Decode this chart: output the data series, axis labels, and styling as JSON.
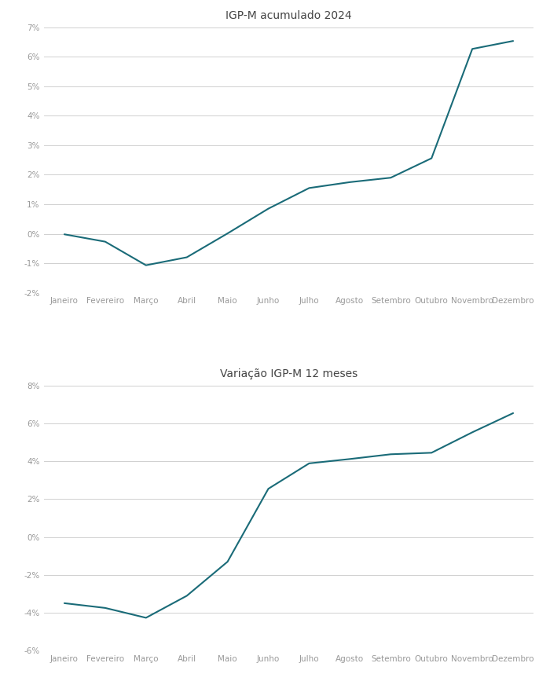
{
  "chart1": {
    "title": "IGP-M acumulado 2024",
    "months": [
      "Janeiro",
      "Fevereiro",
      "Março",
      "Abril",
      "Maio",
      "Junho",
      "Julho",
      "Agosto",
      "Setembro",
      "Outubro",
      "Novembro",
      "Dezembro"
    ],
    "data": [
      -0.02,
      -0.27,
      -1.07,
      -0.8,
      0.01,
      0.85,
      1.55,
      1.75,
      1.9,
      2.56,
      6.27,
      6.54
    ],
    "ylim": [
      -2,
      7
    ],
    "yticks": [
      -2,
      -1,
      0,
      1,
      2,
      3,
      4,
      5,
      6,
      7
    ],
    "line_color": "#1a6b78",
    "line_width": 1.5
  },
  "chart2": {
    "title": "Variação IGP-M 12 meses",
    "months": [
      "Janeiro",
      "Fevereiro",
      "Março",
      "Abril",
      "Maio",
      "Junho",
      "Julho",
      "Agosto",
      "Setembro",
      "Outubro",
      "Novembro",
      "Dezembro"
    ],
    "data": [
      -3.49,
      -3.74,
      -4.26,
      -3.1,
      -1.3,
      2.55,
      3.89,
      4.12,
      4.37,
      4.45,
      5.53,
      6.54
    ],
    "ylim": [
      -6,
      8
    ],
    "yticks": [
      -6,
      -4,
      -2,
      0,
      2,
      4,
      6,
      8
    ],
    "line_color": "#1a6b78",
    "line_width": 1.5
  },
  "background_color": "#ffffff",
  "grid_color": "#d0d0d0",
  "tick_label_color": "#999999",
  "title_color": "#444444",
  "title_fontsize": 10,
  "tick_fontsize": 7.5
}
